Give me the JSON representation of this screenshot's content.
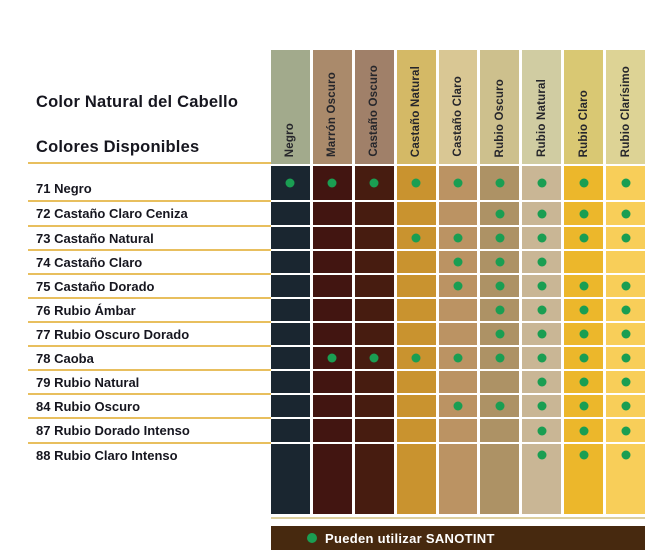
{
  "header": {
    "title1": "Color Natural del Cabello",
    "title2": "Colores Disponibles"
  },
  "footer": {
    "label": "Pueden utilizar SANOTINT"
  },
  "colors": {
    "dot_green": "#1a9e52",
    "line_gold": "#e8bf5e",
    "pale_gold_rule": "#ddcf9e",
    "footer_brown": "#47290f",
    "text_dark": "#16161f"
  },
  "chart_data": {
    "type": "heatmap",
    "title": "Color Natural del Cabello / Colores Disponibles",
    "legend": {
      "dot_label": "Pueden utilizar SANOTINT",
      "legend_position": "bottom"
    },
    "columns": [
      {
        "label": "Negro",
        "header_color": "#a2aa8c",
        "cell_color": "#1a2630"
      },
      {
        "label": "Marrón Oscuro",
        "header_color": "#aa8a6b",
        "cell_color": "#421511"
      },
      {
        "label": "Castaño Oscuro",
        "header_color": "#a08069",
        "cell_color": "#471c10"
      },
      {
        "label": "Castaño Natural",
        "header_color": "#d4b966",
        "cell_color": "#c9932f"
      },
      {
        "label": "Castaño Claro",
        "header_color": "#d9c794",
        "cell_color": "#bb9363"
      },
      {
        "label": "Rubio Oscuro",
        "header_color": "#cdc08d",
        "cell_color": "#ad9265"
      },
      {
        "label": "Rubio Natural",
        "header_color": "#d0cca2",
        "cell_color": "#c9b695"
      },
      {
        "label": "Rubio Claro",
        "header_color": "#d9c873",
        "cell_color": "#ecb72b"
      },
      {
        "label": "Rubio Clarísimo",
        "header_color": "#ddd395",
        "cell_color": "#f8ce59"
      }
    ],
    "rows": [
      {
        "label": "71 Negro",
        "dots": [
          1,
          1,
          1,
          1,
          1,
          1,
          1,
          1,
          1
        ]
      },
      {
        "label": "72 Castaño Claro Ceniza",
        "dots": [
          0,
          0,
          0,
          0,
          0,
          1,
          1,
          1,
          1
        ]
      },
      {
        "label": "73 Castaño Natural",
        "dots": [
          0,
          0,
          0,
          1,
          1,
          1,
          1,
          1,
          1
        ]
      },
      {
        "label": "74 Castaño Claro",
        "dots": [
          0,
          0,
          0,
          0,
          1,
          1,
          1,
          0,
          0
        ]
      },
      {
        "label": "75 Castaño Dorado",
        "dots": [
          0,
          0,
          0,
          0,
          1,
          1,
          1,
          1,
          1
        ]
      },
      {
        "label": "76 Rubio Ámbar",
        "dots": [
          0,
          0,
          0,
          0,
          0,
          1,
          1,
          1,
          1
        ]
      },
      {
        "label": "77 Rubio Oscuro Dorado",
        "dots": [
          0,
          0,
          0,
          0,
          0,
          1,
          1,
          1,
          1
        ]
      },
      {
        "label": "78 Caoba",
        "dots": [
          0,
          1,
          1,
          1,
          1,
          1,
          1,
          1,
          1
        ]
      },
      {
        "label": "79 Rubio Natural",
        "dots": [
          0,
          0,
          0,
          0,
          0,
          0,
          1,
          1,
          1
        ]
      },
      {
        "label": "84 Rubio Oscuro",
        "dots": [
          0,
          0,
          0,
          0,
          1,
          1,
          1,
          1,
          1
        ]
      },
      {
        "label": "87 Rubio Dorado Intenso",
        "dots": [
          0,
          0,
          0,
          0,
          0,
          0,
          1,
          1,
          1
        ]
      },
      {
        "label": "88 Rubio Claro Intenso",
        "dots": [
          0,
          0,
          0,
          0,
          0,
          0,
          1,
          1,
          1
        ]
      }
    ]
  }
}
